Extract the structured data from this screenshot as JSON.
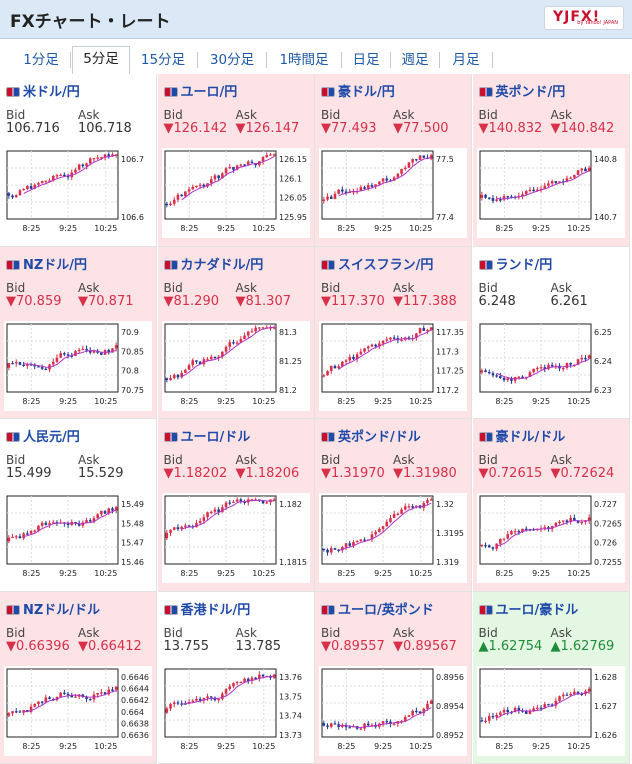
{
  "header": {
    "title": "FXチャート・レート",
    "logo": "YJFX!",
    "logo_sub": "by Yahoo! JAPAN"
  },
  "tabs": [
    {
      "label": "1分足",
      "active": false
    },
    {
      "label": "5分足",
      "active": true
    },
    {
      "label": "15分足",
      "active": false
    },
    {
      "label": "30分足",
      "active": false
    },
    {
      "label": "1時間足",
      "active": false
    },
    {
      "label": "日足",
      "active": false
    },
    {
      "label": "週足",
      "active": false
    },
    {
      "label": "月足",
      "active": false
    }
  ],
  "labels": {
    "bid": "Bid",
    "ask": "Ask"
  },
  "colors": {
    "up": "#d9304a",
    "down": "#1f3a99",
    "ma": "#b233c4",
    "neg_bg": "#fde2e6",
    "pos_bg": "#e4f7e2"
  },
  "pairs": [
    {
      "name": "米ドル/円",
      "bid": "106.716",
      "ask": "106.718",
      "dir": "none",
      "y_ticks": [
        "106.7",
        "106.6"
      ],
      "x_ticks": [
        "8:25",
        "9:25",
        "10:25"
      ]
    },
    {
      "name": "ユーロ/円",
      "bid": "126.142",
      "ask": "126.147",
      "dir": "down",
      "y_ticks": [
        "126.15",
        "126.1",
        "126.05",
        "125.95"
      ],
      "x_ticks": [
        "8:25",
        "9:25",
        "10:25"
      ]
    },
    {
      "name": "豪ドル/円",
      "bid": "77.493",
      "ask": "77.500",
      "dir": "down",
      "y_ticks": [
        "77.5",
        "77.4"
      ],
      "x_ticks": [
        "8:25",
        "9:25",
        "10:25"
      ]
    },
    {
      "name": "英ポンド/円",
      "bid": "140.832",
      "ask": "140.842",
      "dir": "down",
      "y_ticks": [
        "140.8",
        "140.7"
      ],
      "x_ticks": [
        "8:25",
        "9:25",
        "10:25"
      ]
    },
    {
      "name": "NZドル/円",
      "bid": "70.859",
      "ask": "70.871",
      "dir": "down",
      "y_ticks": [
        "70.9",
        "70.85",
        "70.8",
        "70.75"
      ],
      "x_ticks": [
        "8:25",
        "9:25",
        "10:25"
      ]
    },
    {
      "name": "カナダドル/円",
      "bid": "81.290",
      "ask": "81.307",
      "dir": "down",
      "y_ticks": [
        "81.3",
        "81.25",
        "81.2"
      ],
      "x_ticks": [
        "8:25",
        "9:25",
        "10:25"
      ]
    },
    {
      "name": "スイスフラン/円",
      "bid": "117.370",
      "ask": "117.388",
      "dir": "down",
      "y_ticks": [
        "117.35",
        "117.3",
        "117.25",
        "117.2"
      ],
      "x_ticks": [
        "8:25",
        "9:25",
        "10:25"
      ]
    },
    {
      "name": "ランド/円",
      "bid": "6.248",
      "ask": "6.261",
      "dir": "none",
      "y_ticks": [
        "6.25",
        "6.24",
        "6.23"
      ],
      "x_ticks": [
        "8:25",
        "9:25",
        "10:25"
      ]
    },
    {
      "name": "人民元/円",
      "bid": "15.499",
      "ask": "15.529",
      "dir": "none",
      "y_ticks": [
        "15.49",
        "15.48",
        "15.47",
        "15.46"
      ],
      "x_ticks": [
        "8:25",
        "9:25",
        "10:25"
      ]
    },
    {
      "name": "ユーロ/ドル",
      "bid": "1.18202",
      "ask": "1.18206",
      "dir": "down",
      "y_ticks": [
        "1.182",
        "1.1815"
      ],
      "x_ticks": [
        "8:25",
        "9:25",
        "10:25"
      ]
    },
    {
      "name": "英ポンド/ドル",
      "bid": "1.31970",
      "ask": "1.31980",
      "dir": "down",
      "y_ticks": [
        "1.32",
        "1.3195",
        "1.319"
      ],
      "x_ticks": [
        "8:25",
        "9:25",
        "10:25"
      ]
    },
    {
      "name": "豪ドル/ドル",
      "bid": "0.72615",
      "ask": "0.72624",
      "dir": "down",
      "y_ticks": [
        "0.727",
        "0.7265",
        "0.726",
        "0.7255"
      ],
      "x_ticks": [
        "8:25",
        "9:25",
        "10:25"
      ]
    },
    {
      "name": "NZドル/ドル",
      "bid": "0.66396",
      "ask": "0.66412",
      "dir": "down",
      "y_ticks": [
        "0.6646",
        "0.6644",
        "0.6642",
        "0.664",
        "0.6638",
        "0.6636"
      ],
      "x_ticks": [
        "8:25",
        "9:25",
        "10:25"
      ]
    },
    {
      "name": "香港ドル/円",
      "bid": "13.755",
      "ask": "13.785",
      "dir": "none",
      "y_ticks": [
        "13.76",
        "13.75",
        "13.74",
        "13.73"
      ],
      "x_ticks": [
        "8:25",
        "9:25",
        "10:25"
      ]
    },
    {
      "name": "ユーロ/英ポンド",
      "bid": "0.89557",
      "ask": "0.89567",
      "dir": "down",
      "y_ticks": [
        "0.8956",
        "0.8954",
        "0.8952"
      ],
      "x_ticks": [
        "8:25",
        "9:25",
        "10:25"
      ]
    },
    {
      "name": "ユーロ/豪ドル",
      "bid": "1.62754",
      "ask": "1.62769",
      "dir": "up",
      "y_ticks": [
        "1.628",
        "1.627",
        "1.626"
      ],
      "x_ticks": [
        "8:25",
        "9:25",
        "10:25"
      ]
    }
  ]
}
